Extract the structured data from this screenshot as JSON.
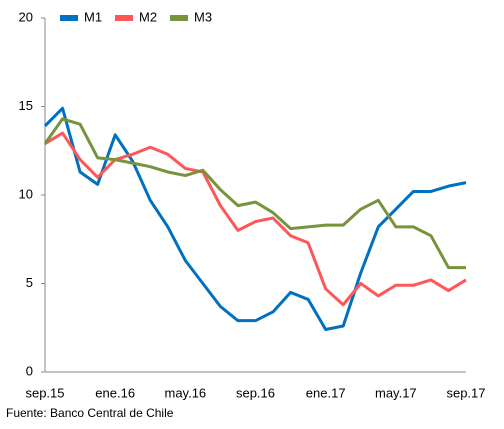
{
  "chart_data": {
    "type": "line",
    "categories": [
      "sep.15",
      null,
      null,
      null,
      "ene.16",
      null,
      null,
      null,
      "may.16",
      null,
      null,
      null,
      "sep.16",
      null,
      null,
      null,
      "ene.17",
      null,
      null,
      null,
      "may.17",
      null,
      null,
      null,
      "sep.17"
    ],
    "series": [
      {
        "name": "M1",
        "color": "#0070c0",
        "values": [
          13.9,
          14.9,
          11.3,
          10.6,
          13.4,
          11.9,
          9.7,
          8.2,
          6.3,
          5.0,
          3.7,
          2.9,
          2.9,
          3.4,
          4.5,
          4.1,
          2.4,
          2.6,
          5.6,
          8.2,
          9.2,
          10.2,
          10.2,
          10.5,
          10.7
        ]
      },
      {
        "name": "M2",
        "color": "#ff5757",
        "values": [
          12.9,
          13.5,
          12.0,
          11.0,
          12.0,
          12.3,
          12.7,
          12.3,
          11.5,
          11.3,
          9.4,
          8.0,
          8.5,
          8.7,
          7.7,
          7.3,
          4.7,
          3.8,
          5.0,
          4.3,
          4.9,
          4.9,
          5.2,
          4.6,
          5.2
        ]
      },
      {
        "name": "M3",
        "color": "#77933c",
        "values": [
          12.9,
          14.3,
          14.0,
          12.1,
          12.0,
          11.8,
          11.6,
          11.3,
          11.1,
          11.4,
          10.3,
          9.4,
          9.6,
          9.0,
          8.1,
          8.2,
          8.3,
          8.3,
          9.2,
          9.7,
          8.2,
          8.2,
          7.7,
          5.9,
          5.9
        ]
      }
    ],
    "ylim": [
      0,
      20
    ],
    "yticks": [
      0,
      5,
      10,
      15,
      20
    ],
    "source": "Fuente: Banco Central de Chile"
  }
}
